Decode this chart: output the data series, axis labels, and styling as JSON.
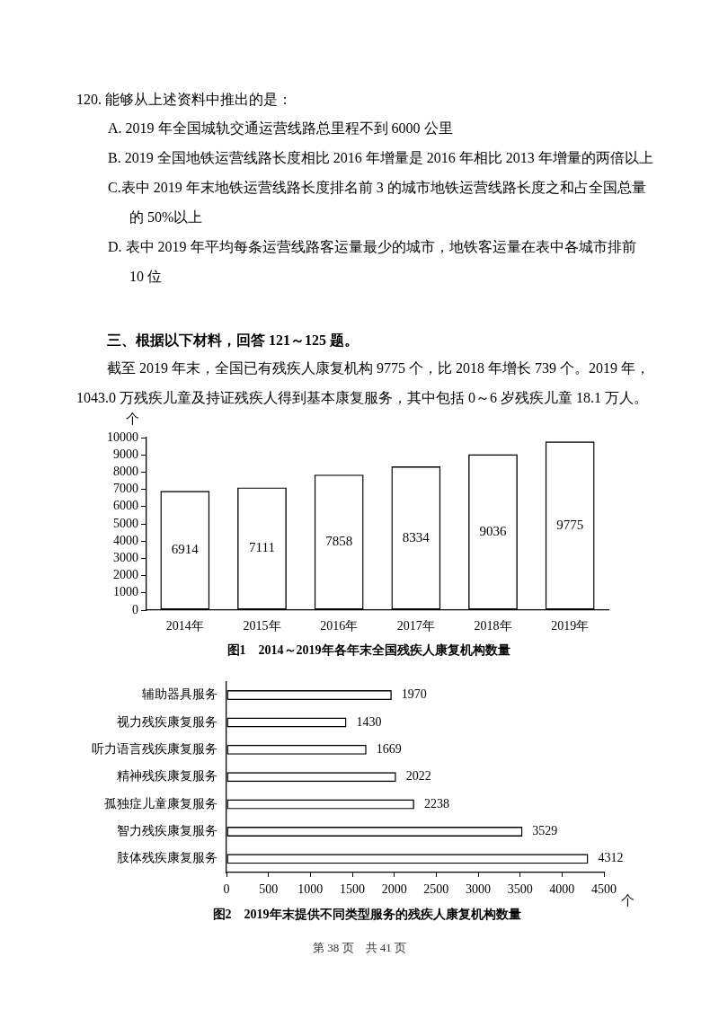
{
  "chart_data": [
    {
      "type": "bar",
      "title": "图1　2014～2019年各年末全国残疾人康复机构数量",
      "ylabel": "个",
      "categories": [
        "2014年",
        "2015年",
        "2016年",
        "2017年",
        "2018年",
        "2019年"
      ],
      "values": [
        6914,
        7111,
        7858,
        8334,
        9036,
        9775
      ],
      "color": "#000000",
      "ylim": [
        0,
        10000
      ],
      "yticks": [
        0,
        1000,
        2000,
        3000,
        4000,
        5000,
        6000,
        7000,
        8000,
        9000,
        10000
      ],
      "data_labels": true,
      "annotations": [
        "120. 能够从上述资料中推出的是：",
        "A. 2019 年全国城轨交通运营线路总里程不到 6000 公里",
        "B. 2019 全国地铁运营线路长度相比 2016 年增量是 2016 年相比 2013 年增量的两倍以上",
        "C.表中 2019 年末地铁运营线路长度排名前 3 的城市地铁运营线路长度之和占全国总量的 50%以上",
        "D. 表中 2019 年平均每条运营线路客运量最少的城市，地铁客运量在表中各城市排前 10 位",
        "三、根据以下材料，回答 121～125 题。",
        "截至 2019 年末，全国已有残疾人康复机构 9775 个，比 2018 年增长 739 个。2019 年，1043.0 万残疾儿童及持证残疾人得到基本康复服务，其中包括 0～6 岁残疾儿童 18.1 万人。"
      ]
    },
    {
      "type": "bar",
      "orientation": "horizontal",
      "title": "图2　2019年末提供不同类型服务的残疾人康复机构数量",
      "xlabel": "个",
      "categories": [
        "辅助器具服务",
        "视力残疾康复服务",
        "听力语言残疾康复服务",
        "精神残疾康复服务",
        "孤独症儿童康复服务",
        "智力残疾康复服务",
        "肢体残疾康复服务"
      ],
      "values": [
        1970,
        1430,
        1669,
        2022,
        2238,
        3529,
        4312
      ],
      "color": "#000000",
      "xlim": [
        0,
        4500
      ],
      "xticks": [
        0,
        500,
        1000,
        1500,
        2000,
        2500,
        3000,
        3500,
        4000,
        4500
      ],
      "data_labels": true,
      "annotations": [
        "第 38 页　共 41 页"
      ]
    }
  ]
}
